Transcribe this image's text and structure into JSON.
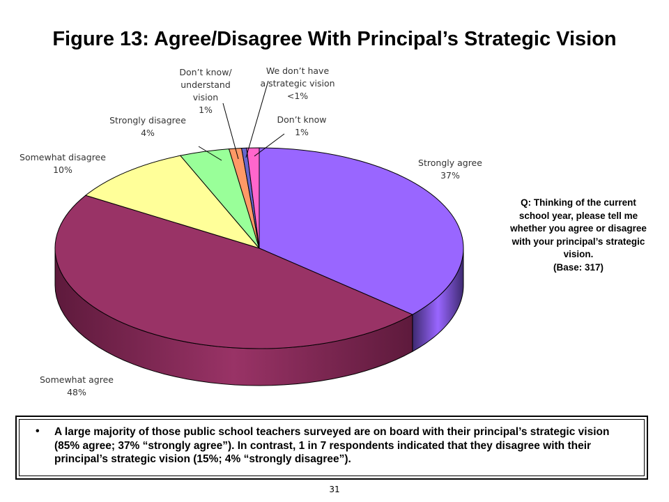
{
  "title": "Figure 13:  Agree/Disagree With Principal’s Strategic Vision",
  "chart_data": {
    "type": "pie",
    "title": "Figure 13:  Agree/Disagree With Principal’s Strategic Vision",
    "three_d": true,
    "slices": [
      {
        "name": "Strongly agree",
        "value_label": "37%",
        "value": 37,
        "color": "#9966FF",
        "side_color": "#3E2A70"
      },
      {
        "name": "Somewhat agree",
        "value_label": "48%",
        "value": 48,
        "color": "#993366",
        "side_color": "#5E1A3C"
      },
      {
        "name": "Somewhat disagree",
        "value_label": "10%",
        "value": 10,
        "color": "#FFFF99",
        "side_color": "#BFBF66"
      },
      {
        "name": "Strongly disagree",
        "value_label": "4%",
        "value": 4,
        "color": "#99FF99",
        "side_color": "#66BF66"
      },
      {
        "name": "Don’t know/ understand vision",
        "value_label": "1%",
        "value": 1,
        "color": "#FF9966",
        "side_color": "#BF6A3E"
      },
      {
        "name": "We don’t have a strategic vision",
        "value_label": "<1%",
        "value": 0.4,
        "color": "#6666CC",
        "side_color": "#3E3E8A"
      },
      {
        "name": "Don’t know",
        "value_label": "1%",
        "value": 1,
        "color": "#FF66CC",
        "side_color": "#BF3E8A"
      }
    ]
  },
  "question": {
    "text": "Q:  Thinking of the current school year, please tell me whether you agree or disagree with your principal’s strategic vision.",
    "base": "(Base:  317)"
  },
  "callout": {
    "bullet": "•",
    "text": "A large majority of those public school teachers surveyed are on board with their principal’s strategic vision (85% agree; 37% “strongly agree”).  In contrast, 1 in 7 respondents indicated that they disagree with their principal’s strategic vision (15%; 4% “strongly disagree”)."
  },
  "page_number": "31"
}
